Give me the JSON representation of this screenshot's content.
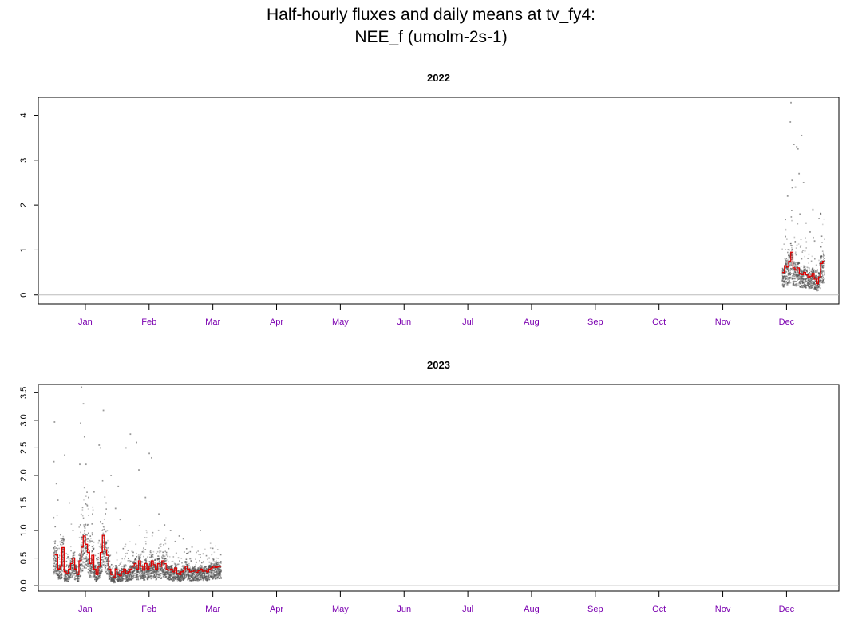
{
  "title_line1": "Half-hourly fluxes and daily means at tv_fy4:",
  "title_line2": "NEE_f (umolm-2s-1)",
  "colors": {
    "daily_mean": "#dd0000",
    "half_hourly": "#555555",
    "month_labels": "#7b00b0",
    "zero_line": "#bbbbbb"
  },
  "chart_data": [
    {
      "type": "scatter",
      "title": "2022",
      "xlabel": "",
      "ylabel": "",
      "x_unit": "day of year",
      "xlim": [
        1,
        365
      ],
      "ylim": [
        -0.2,
        4.4
      ],
      "yticks": [
        0,
        1,
        2,
        3,
        4
      ],
      "ytick_labels": [
        "0",
        "1",
        "2",
        "3",
        "4"
      ],
      "month_labels": [
        "Jan",
        "Feb",
        "Mar",
        "Apr",
        "May",
        "Jun",
        "Jul",
        "Aug",
        "Sep",
        "Oct",
        "Nov",
        "Dec"
      ],
      "month_tick_days": [
        16,
        46,
        76,
        106,
        136,
        166,
        196,
        226,
        256,
        286,
        316,
        346
      ],
      "zero_line": 0,
      "series": [
        {
          "role": "daily_mean",
          "style": "step",
          "x": [
            344,
            345,
            346,
            347,
            348,
            349,
            350,
            351,
            352,
            353,
            354,
            355,
            356,
            357,
            358,
            359,
            360,
            361,
            362,
            363
          ],
          "y": [
            0.5,
            0.65,
            0.62,
            0.75,
            0.95,
            0.6,
            0.55,
            0.6,
            0.48,
            0.45,
            0.5,
            0.45,
            0.4,
            0.42,
            0.48,
            0.35,
            0.25,
            0.4,
            0.7,
            0.75
          ]
        },
        {
          "role": "half_hourly_extremes",
          "x": [
            346.5,
            347.2,
            347.8,
            348.1,
            348.6,
            349.5,
            350.2,
            350.8,
            351.4,
            351.9,
            352.3,
            353.1,
            354.0,
            355.2,
            357.1,
            358.4,
            359.2,
            361.3,
            362.1,
            345.5
          ],
          "y": [
            2.2,
            1.0,
            3.85,
            4.28,
            2.55,
            3.35,
            2.4,
            3.3,
            3.25,
            2.7,
            1.8,
            3.55,
            2.5,
            1.6,
            1.4,
            1.9,
            1.2,
            1.7,
            1.8,
            1.3
          ]
        }
      ]
    },
    {
      "type": "scatter",
      "title": "2023",
      "xlabel": "",
      "ylabel": "",
      "x_unit": "day of year",
      "xlim": [
        1,
        365
      ],
      "ylim": [
        -0.1,
        3.65
      ],
      "yticks": [
        0,
        0.5,
        1,
        1.5,
        2,
        2.5,
        3,
        3.5
      ],
      "ytick_labels": [
        "0.0",
        "0.5",
        "1.0",
        "1.5",
        "2.0",
        "2.5",
        "3.0",
        "3.5"
      ],
      "month_labels": [
        "Jan",
        "Feb",
        "Mar",
        "Apr",
        "May",
        "Jun",
        "Jul",
        "Aug",
        "Sep",
        "Oct",
        "Nov",
        "Dec"
      ],
      "month_tick_days": [
        16,
        46,
        76,
        106,
        136,
        166,
        196,
        226,
        256,
        286,
        316,
        346
      ],
      "zero_line": 0,
      "series": [
        {
          "role": "daily_mean",
          "style": "step",
          "x": [
            1,
            2,
            3,
            4,
            5,
            6,
            7,
            8,
            9,
            10,
            11,
            12,
            13,
            14,
            15,
            16,
            17,
            18,
            19,
            20,
            21,
            22,
            23,
            24,
            25,
            26,
            27,
            28,
            29,
            30,
            31,
            32,
            33,
            34,
            35,
            36,
            37,
            38,
            39,
            40,
            41,
            42,
            43,
            44,
            45,
            46,
            47,
            48,
            49,
            50,
            51,
            52,
            53,
            54,
            55,
            56,
            57,
            58,
            59,
            60,
            61,
            62,
            63,
            64,
            65,
            66,
            67,
            68,
            69,
            70,
            71,
            72,
            73,
            74,
            75,
            76,
            77,
            78,
            79
          ],
          "y": [
            0.57,
            0.56,
            0.3,
            0.35,
            0.69,
            0.25,
            0.22,
            0.3,
            0.4,
            0.5,
            0.3,
            0.2,
            0.45,
            0.7,
            0.9,
            0.75,
            0.6,
            0.4,
            0.55,
            0.3,
            0.2,
            0.35,
            0.6,
            0.91,
            0.65,
            0.55,
            0.3,
            0.2,
            0.15,
            0.3,
            0.2,
            0.18,
            0.25,
            0.3,
            0.22,
            0.25,
            0.3,
            0.35,
            0.4,
            0.3,
            0.45,
            0.35,
            0.28,
            0.4,
            0.3,
            0.35,
            0.45,
            0.38,
            0.3,
            0.4,
            0.35,
            0.45,
            0.4,
            0.3,
            0.28,
            0.3,
            0.25,
            0.32,
            0.22,
            0.2,
            0.25,
            0.28,
            0.35,
            0.3,
            0.25,
            0.26,
            0.28,
            0.24,
            0.27,
            0.3,
            0.26,
            0.28,
            0.25,
            0.3,
            0.32,
            0.35,
            0.33,
            0.34,
            0.35
          ],
          "x_end": 80
        },
        {
          "role": "half_hourly_extremes",
          "x": [
            1.2,
            1.5,
            2.4,
            3.1,
            6.3,
            8.5,
            10.2,
            13.4,
            13.8,
            14.2,
            15.1,
            15.6,
            16.3,
            17.5,
            19.4,
            20.1,
            22.5,
            23.1,
            24.5,
            25.8,
            28.1,
            30.2,
            31.5,
            32.4,
            35.1,
            37.2,
            40.1,
            41.2,
            44.3,
            46.1,
            47.2,
            50.6,
            53.3,
            56.1,
            58.3,
            60.2,
            62.1,
            64.4,
            66.2,
            70.1,
            74.3
          ],
          "y": [
            2.25,
            2.97,
            1.85,
            1.55,
            2.37,
            1.5,
            1.0,
            2.2,
            2.95,
            3.6,
            3.3,
            2.7,
            2.2,
            1.6,
            1.3,
            1.7,
            2.55,
            2.5,
            3.18,
            1.5,
            2.0,
            1.4,
            1.8,
            1.2,
            2.5,
            2.75,
            2.6,
            2.1,
            1.6,
            2.4,
            2.32,
            1.3,
            1.1,
            1.0,
            0.8,
            0.9,
            0.85,
            0.6,
            0.7,
            1.0,
            0.5
          ]
        }
      ]
    }
  ]
}
